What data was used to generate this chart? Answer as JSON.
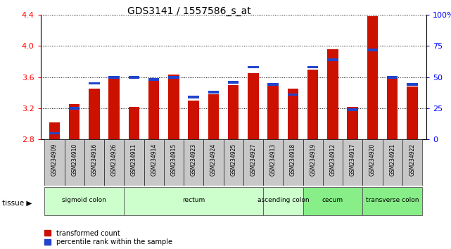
{
  "title": "GDS3141 / 1557586_s_at",
  "samples": [
    "GSM234909",
    "GSM234910",
    "GSM234916",
    "GSM234926",
    "GSM234911",
    "GSM234914",
    "GSM234915",
    "GSM234923",
    "GSM234924",
    "GSM234925",
    "GSM234927",
    "GSM234913",
    "GSM234918",
    "GSM234919",
    "GSM234912",
    "GSM234917",
    "GSM234920",
    "GSM234921",
    "GSM234922"
  ],
  "red_values": [
    3.02,
    3.25,
    3.45,
    3.62,
    3.22,
    3.55,
    3.63,
    3.3,
    3.38,
    3.5,
    3.65,
    3.5,
    3.45,
    3.7,
    3.96,
    3.22,
    4.38,
    3.6,
    3.48
  ],
  "blue_percentiles": [
    5,
    25,
    45,
    50,
    50,
    48,
    50,
    34,
    38,
    46,
    58,
    44,
    36,
    58,
    64,
    24,
    72,
    50,
    44
  ],
  "ylim_left": [
    2.8,
    4.4
  ],
  "ylim_right": [
    0,
    100
  ],
  "yticks_left": [
    2.8,
    3.2,
    3.6,
    4.0,
    4.4
  ],
  "yticks_right": [
    0,
    25,
    50,
    75,
    100
  ],
  "bar_color_red": "#cc1100",
  "bar_color_blue": "#2244cc",
  "bar_width": 0.55,
  "legend_red": "transformed count",
  "legend_blue": "percentile rank within the sample",
  "tissue_label": "tissue",
  "ylim_base": 2.8,
  "groups": [
    {
      "label": "sigmoid colon",
      "start": 0,
      "end": 4,
      "color": "#ccffcc"
    },
    {
      "label": "rectum",
      "start": 4,
      "end": 11,
      "color": "#ccffcc"
    },
    {
      "label": "ascending colon",
      "start": 11,
      "end": 13,
      "color": "#ccffcc"
    },
    {
      "label": "cecum",
      "start": 13,
      "end": 16,
      "color": "#88ee88"
    },
    {
      "label": "transverse colon",
      "start": 16,
      "end": 19,
      "color": "#88ee88"
    }
  ]
}
